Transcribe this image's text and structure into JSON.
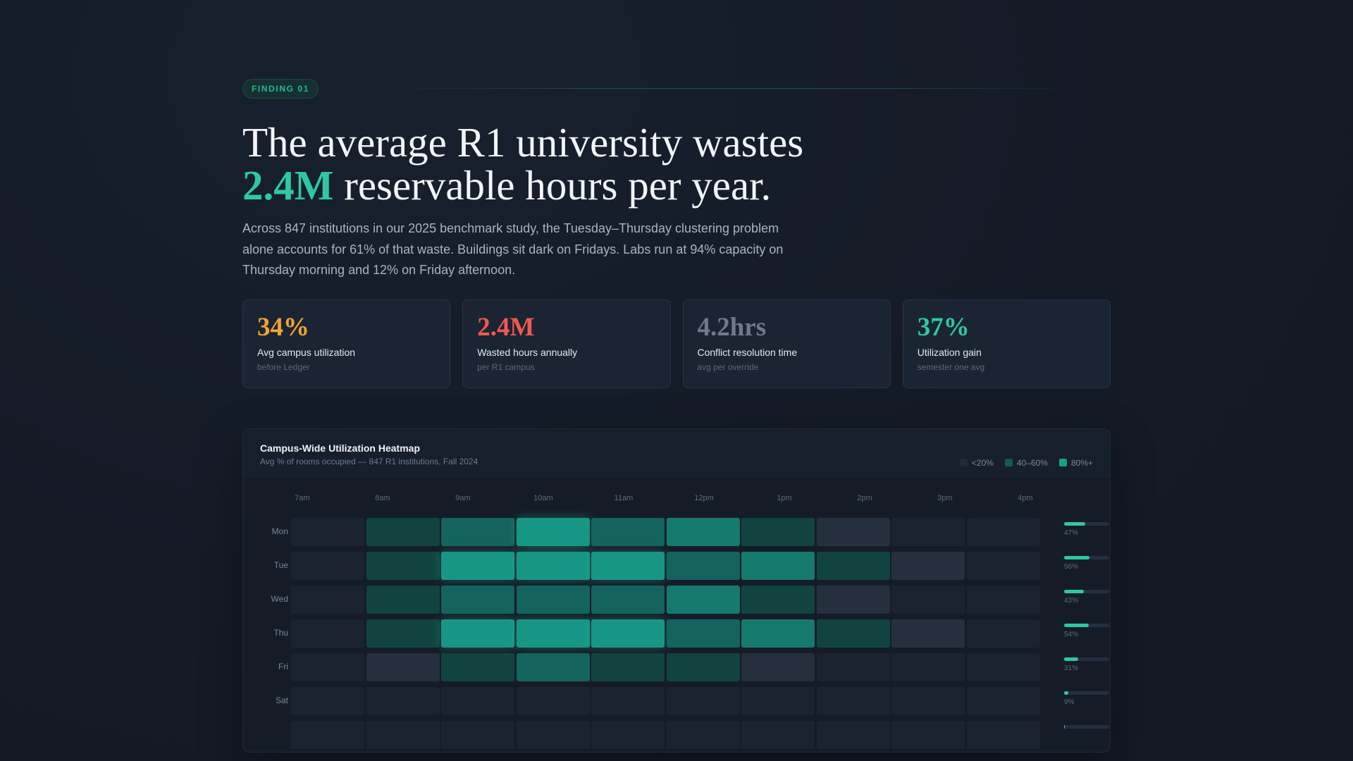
{
  "finding": {
    "badge": "FINDING 01"
  },
  "headline": {
    "before": "The average R1 university wastes ",
    "highlight": "2.4M",
    "after": " reservable hours per year."
  },
  "lede": "Across 847 institutions in our 2025 benchmark study, the Tuesday–Thursday clustering problem alone accounts for 61% of that waste. Buildings sit dark on Fridays. Labs run at 94% capacity on Thursday morning and 12% on Friday afternoon.",
  "stats": [
    {
      "value": "34%",
      "label": "Avg campus utilization",
      "sub": "before Ledger",
      "color": "#f0a531"
    },
    {
      "value": "2.4M",
      "label": "Wasted hours annually",
      "sub": "per R1 campus",
      "color": "#ef5a4f"
    },
    {
      "value": "4.2hrs",
      "label": "Conflict resolution time",
      "sub": "avg per override",
      "color": "#6f7b8d"
    },
    {
      "value": "37%",
      "label": "Utilization gain",
      "sub": "semester one avg",
      "color": "#2fc8a3"
    }
  ],
  "heatmap": {
    "title": "Campus-Wide Utilization Heatmap",
    "subtitle": "Avg % of rooms occupied — 847 R1 institutions, Fall 2024",
    "legend": [
      {
        "label": "<20%",
        "color": "#222a37"
      },
      {
        "label": "40–60%",
        "color": "#14584f"
      },
      {
        "label": "80%+",
        "color": "#17a08a"
      }
    ],
    "hours": [
      "7am",
      "8am",
      "9am",
      "10am",
      "11am",
      "12pm",
      "1pm",
      "2pm",
      "3pm",
      "4pm"
    ],
    "rows": [
      {
        "day": "Mon",
        "levels": [
          0,
          2,
          3,
          5,
          3,
          4,
          2,
          1,
          0,
          0
        ],
        "util": 47,
        "util_label": "47%"
      },
      {
        "day": "Tue",
        "levels": [
          0,
          2,
          5,
          5,
          5,
          3,
          4,
          2,
          1,
          0
        ],
        "util": 56,
        "util_label": "56%"
      },
      {
        "day": "Wed",
        "levels": [
          0,
          2,
          3,
          3,
          3,
          4,
          2,
          1,
          0,
          0
        ],
        "util": 43,
        "util_label": "43%"
      },
      {
        "day": "Thu",
        "levels": [
          0,
          2,
          5,
          5,
          5,
          3,
          4,
          2,
          1,
          0
        ],
        "util": 54,
        "util_label": "54%"
      },
      {
        "day": "Fri",
        "levels": [
          0,
          1,
          2,
          3,
          2,
          2,
          1,
          0,
          0,
          0
        ],
        "util": 31,
        "util_label": "31%"
      },
      {
        "day": "Sat",
        "levels": [
          0,
          0,
          0,
          0,
          0,
          0,
          0,
          0,
          0,
          0
        ],
        "util": 9,
        "util_label": "9%"
      },
      {
        "day": "",
        "levels": [
          0,
          0,
          0,
          0,
          0,
          0,
          0,
          0,
          0,
          0
        ],
        "util": 2,
        "util_label": ""
      }
    ],
    "level_colors": [
      "#1c2330",
      "#262f3e",
      "#114440",
      "#14635d",
      "#157a6e",
      "#179686"
    ]
  }
}
